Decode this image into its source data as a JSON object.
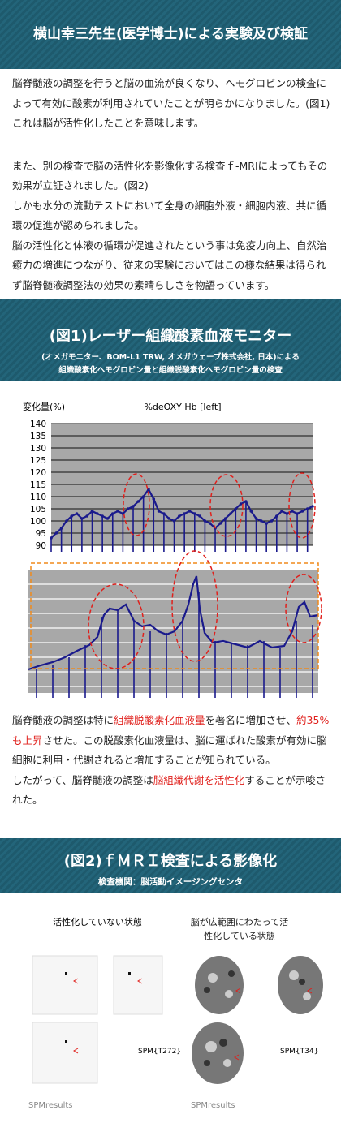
{
  "header": {
    "title": "横山幸三先生(医学博士)による実験及び検証"
  },
  "intro": {
    "paragraphs": [
      "脳脊髄液の調整を行うと脳の血流が良くなり、ヘモグロビンの検査によって有効に酸素が利用されていたことが明らかになりました。(図1)",
      "これは脳が活性化したことを意味します。",
      "また、別の検査で脳の活性化を影像化する検査ｆ-MRIによってもその効果が立証されました。(図2)",
      "しかも水分の流動テストにおいて全身の細胞外液・細胞内液、共に循環の促進が認められました。",
      "脳の活性化と体液の循環が促進されたという事は免疫力向上、自然治癒力の増進につながり、従来の実験においてはこの様な結果は得られず脳脊髄液調整法の効果の素晴らしさを物語っています。"
    ]
  },
  "figure1": {
    "title": "(図1)レーザー組織酸素血液モニター",
    "subtitle": [
      "(オメガモニター、BOM-L1 TRW, オメガウェーブ株式会社, 日本)による",
      "組織酸素化ヘモグロビン量と組織脱酸素化ヘモグロビン量の検査"
    ],
    "chart_data": {
      "type": "line",
      "title": "%deOXY Hb [left]",
      "y_label": "変化量(%)",
      "ylim": [
        90,
        140
      ],
      "yticks": [
        90,
        95,
        100,
        105,
        110,
        115,
        120,
        125,
        130,
        135,
        140
      ],
      "grid": true,
      "color": "#1a1a8c",
      "values": [
        93,
        95,
        97,
        100,
        102,
        103,
        101,
        102,
        104,
        103,
        102,
        101,
        103,
        104,
        103,
        105,
        106,
        108,
        110,
        113,
        109,
        104,
        103,
        101,
        100,
        102,
        103,
        104,
        103,
        102,
        100,
        99,
        97,
        99,
        101,
        103,
        105,
        107,
        108,
        104,
        101,
        100,
        99,
        100,
        102,
        104,
        103,
        104,
        103,
        104,
        105,
        106
      ]
    }
  },
  "result": {
    "paragraphs": [
      [
        {
          "text": "脳脊髄液の調整は特に",
          "highlight": false
        },
        {
          "text": "組織脱酸素化血液量",
          "highlight": true
        },
        {
          "text": "を著名に増加させ、",
          "highlight": false
        },
        {
          "text": "約35%も上昇",
          "highlight": true
        },
        {
          "text": "させた。この脱酸素化血液量は、脳に運ばれた酸素が有効に脳細胞に利用・代謝されると増加することが知られている。",
          "highlight": false
        }
      ],
      [
        {
          "text": "したがって、脳脊髄液の調整は",
          "highlight": false
        },
        {
          "text": "脳組織代謝を活性化",
          "highlight": true
        },
        {
          "text": "することが示唆された。",
          "highlight": false
        }
      ]
    ]
  },
  "figure2": {
    "title": "(図2)ｆＭＲＩ検査による影像化",
    "subtitle": "検査機関：脳活動イメージングセンタ",
    "panels": [
      {
        "label": "活性化していない状態",
        "spm": "SPM{T272}",
        "results": "SPMresults"
      },
      {
        "label": "脳が広範囲にわたって活性化している状態",
        "spm": "SPM{T34}",
        "results": "SPMresults"
      }
    ]
  }
}
